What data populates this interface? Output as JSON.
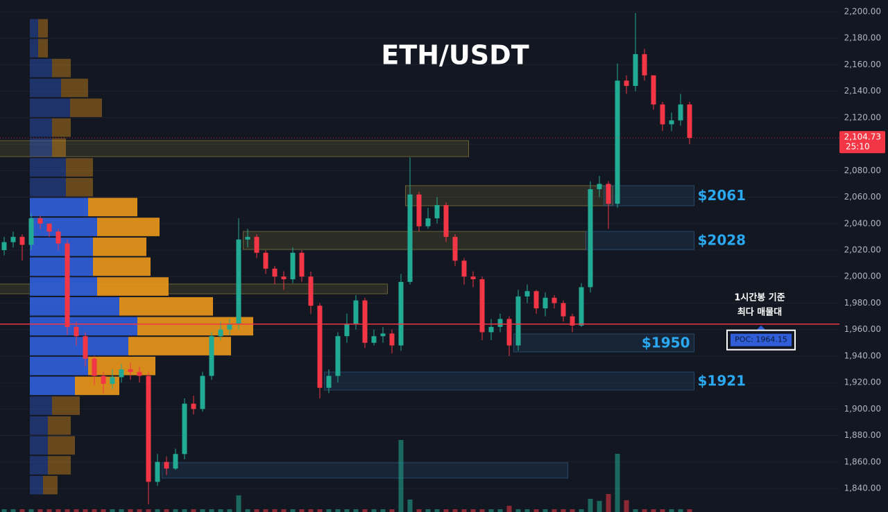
{
  "chart_data": {
    "type": "candlestick",
    "title": "ETH/USDT",
    "ylim": [
      1822.2,
      2208.9
    ],
    "yticks": [
      {
        "value": 1840,
        "label": "1,840.00"
      },
      {
        "value": 1860,
        "label": "1,860.00"
      },
      {
        "value": 1880,
        "label": "1,880.00"
      },
      {
        "value": 1900,
        "label": "1,900.00"
      },
      {
        "value": 1920,
        "label": "1,920.00"
      },
      {
        "value": 1940,
        "label": "1,940.00"
      },
      {
        "value": 1960,
        "label": "1,960.00"
      },
      {
        "value": 1980,
        "label": "1,980.00"
      },
      {
        "value": 2000,
        "label": "2,000.00"
      },
      {
        "value": 2020,
        "label": "2,020.00"
      },
      {
        "value": 2040,
        "label": "2,040.00"
      },
      {
        "value": 2060,
        "label": "2,060.00"
      },
      {
        "value": 2080,
        "label": "2,080.00"
      },
      {
        "value": 2100,
        "label": "2,100.00"
      },
      {
        "value": 2120,
        "label": "2,120.00"
      },
      {
        "value": 2140,
        "label": "2,140.00"
      },
      {
        "value": 2160,
        "label": "2,160.00"
      },
      {
        "value": 2180,
        "label": "2,180.00"
      },
      {
        "value": 2200,
        "label": "2,200.00"
      }
    ],
    "grid": true,
    "up_color": "#22ab94",
    "down_color": "#f23645",
    "open": [
      2020,
      2026,
      2030,
      2024,
      2044,
      2040,
      2034,
      2025,
      1962,
      1955,
      1938,
      1925,
      1919,
      1924,
      1930,
      1928,
      1925,
      1845,
      1860,
      1855,
      1866,
      1904,
      1900,
      1925,
      1955,
      1960,
      1964,
      2028,
      2030,
      2018,
      2006,
      2000,
      1998,
      2018,
      2000,
      1978,
      1916,
      1925,
      1955,
      1964,
      1982,
      1950,
      1955,
      1957,
      1948,
      1996,
      2062,
      2038,
      2044,
      2054,
      2030,
      2012,
      2000,
      1998,
      1958,
      1962,
      1968,
      1948,
      1985,
      1989,
      1976,
      1984,
      1980,
      1970,
      1963,
      1992,
      2066,
      2070,
      2055,
      2148,
      2144,
      2168,
      2152,
      2130,
      2115,
      2118,
      2130
    ],
    "high": [
      2030,
      2034,
      2032,
      2048,
      2046,
      2040,
      2036,
      2028,
      1966,
      1958,
      1940,
      1928,
      1930,
      1934,
      1935,
      1932,
      1928,
      1866,
      1864,
      1870,
      1908,
      1910,
      1928,
      1958,
      1966,
      1968,
      2044,
      2036,
      2032,
      2020,
      2008,
      2004,
      2022,
      2020,
      2004,
      1980,
      1930,
      1958,
      1972,
      1986,
      1984,
      1960,
      1962,
      1960,
      2002,
      2090,
      2064,
      2052,
      2060,
      2056,
      2032,
      2014,
      2004,
      2000,
      1968,
      1972,
      1970,
      1990,
      1994,
      1990,
      1988,
      1986,
      1982,
      1972,
      1995,
      2072,
      2076,
      2072,
      2161,
      2152,
      2199,
      2172,
      2152,
      2132,
      2124,
      2138,
      2132
    ],
    "low": [
      2016,
      2022,
      2012,
      2020,
      2036,
      2030,
      2020,
      1956,
      1948,
      1932,
      1918,
      1912,
      1915,
      1920,
      1922,
      1920,
      1828,
      1842,
      1850,
      1854,
      1862,
      1896,
      1898,
      1922,
      1952,
      1956,
      1960,
      2022,
      2014,
      2002,
      1994,
      1990,
      1995,
      1996,
      1972,
      1908,
      1912,
      1920,
      1950,
      1960,
      1946,
      1948,
      1950,
      1942,
      1944,
      1994,
      2034,
      2036,
      2040,
      2026,
      2008,
      1994,
      1992,
      1952,
      1952,
      1958,
      1940,
      1944,
      1980,
      1972,
      1970,
      1976,
      1966,
      1958,
      1962,
      1988,
      2060,
      2036,
      2052,
      2138,
      2140,
      2148,
      2126,
      2110,
      2110,
      2114,
      2100
    ],
    "close": [
      2026,
      2030,
      2024,
      2044,
      2040,
      2034,
      2025,
      1962,
      1955,
      1938,
      1925,
      1919,
      1924,
      1930,
      1928,
      1925,
      1845,
      1860,
      1855,
      1866,
      1904,
      1900,
      1925,
      1955,
      1960,
      1964,
      2028,
      2030,
      2018,
      2006,
      2000,
      1998,
      2018,
      2000,
      1978,
      1916,
      1925,
      1955,
      1964,
      1982,
      1950,
      1955,
      1957,
      1948,
      1996,
      2062,
      2038,
      2044,
      2054,
      2030,
      2012,
      2000,
      1998,
      1958,
      1962,
      1968,
      1948,
      1985,
      1989,
      1976,
      1984,
      1980,
      1970,
      1963,
      1992,
      2066,
      2070,
      2055,
      2148,
      2144,
      2168,
      2152,
      2130,
      2115,
      2118,
      2130,
      2104.73
    ],
    "volume": [
      4,
      4,
      4,
      4,
      4,
      4,
      4,
      4,
      4,
      4,
      4,
      4,
      4,
      4,
      4,
      4,
      4,
      4,
      4,
      4,
      4,
      4,
      4,
      4,
      4,
      4,
      24,
      4,
      4,
      4,
      4,
      4,
      4,
      4,
      4,
      4,
      4,
      4,
      4,
      4,
      4,
      4,
      4,
      4,
      104,
      18,
      4,
      4,
      4,
      4,
      4,
      4,
      4,
      4,
      4,
      4,
      9,
      4,
      4,
      4,
      4,
      4,
      4,
      4,
      4,
      19,
      16,
      26,
      84,
      17,
      4,
      4,
      4,
      4,
      4,
      4,
      4
    ],
    "volume_profile": {
      "bins": [
        1835,
        1850,
        1865,
        1880,
        1895,
        1910,
        1925,
        1940,
        1955,
        1970,
        1985,
        2000,
        2015,
        2030,
        2045,
        2060,
        2075,
        2090,
        2105,
        2120,
        2135,
        2150,
        2165,
        2180,
        2195
      ],
      "buy": [
        19,
        26,
        26,
        26,
        32,
        65,
        84,
        142,
        155,
        129,
        97,
        91,
        91,
        97,
        84,
        52,
        52,
        32,
        32,
        58,
        45,
        32,
        12,
        12
      ],
      "sell": [
        21,
        33,
        39,
        33,
        40,
        64,
        97,
        148,
        167,
        135,
        103,
        83,
        77,
        90,
        71,
        39,
        39,
        20,
        27,
        46,
        39,
        27,
        14,
        14
      ],
      "value_area": [
        1910,
        2060
      ],
      "buy_color": "#2f5ed8",
      "sell_color": "#e8961a"
    },
    "zones": [
      {
        "low": 2090.6,
        "high": 2102.7,
        "from": 0,
        "to": 51,
        "color": "#8a7d3a"
      },
      {
        "low": 2053.5,
        "high": 2068.7,
        "from": 45,
        "to": 67,
        "color": "#8a7d3a"
      },
      {
        "label": "$2061",
        "low": 2053.5,
        "high": 2068.7,
        "from": 67,
        "to": 76,
        "color": "#2c5a85",
        "label_position": "outside"
      },
      {
        "low": 2020.5,
        "high": 2034.1,
        "from": 27,
        "to": 64,
        "color": "#8a7d3a"
      },
      {
        "label": "$2028",
        "low": 2020.5,
        "high": 2034.1,
        "from": 65,
        "to": 76,
        "color": "#2c5a85",
        "label_position": "outside"
      },
      {
        "low": 1987.0,
        "high": 1994.4,
        "from": 0,
        "to": 42,
        "color": "#8a7d3a"
      },
      {
        "label": "$1950",
        "low": 1943.1,
        "high": 1956.7,
        "from": 57,
        "to": 76,
        "color": "#2c5a85",
        "label_position": "inside"
      },
      {
        "label": "$1921",
        "low": 1914.3,
        "high": 1927.9,
        "from": 36,
        "to": 76,
        "color": "#2c5a85",
        "label_position": "outside"
      },
      {
        "low": 1847.8,
        "high": 1859.4,
        "from": 18,
        "to": 62,
        "color": "#2c5a85"
      }
    ],
    "zone_label_color": "#2aa8f0",
    "poc": {
      "value": 1964.15,
      "label": "POC: 1964.15"
    },
    "annotation": [
      "1시간봉 기준",
      "최다 매물대"
    ],
    "last_price": {
      "value": 2104.73,
      "label": "2,104.73"
    },
    "countdown": "25:10"
  }
}
